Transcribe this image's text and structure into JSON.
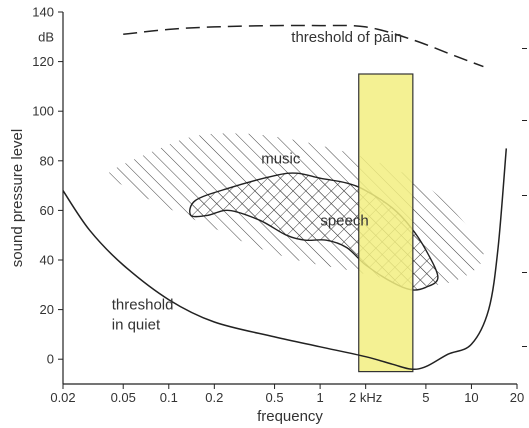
{
  "chart_data": {
    "type": "area",
    "title": "",
    "xlabel": "frequency",
    "ylabel": "sound pressure level",
    "x_scale": "log",
    "xlim": [
      0.02,
      20
    ],
    "ylim": [
      -10,
      140
    ],
    "x_ticks": [
      {
        "value": 0.02,
        "label": "0.02"
      },
      {
        "value": 0.05,
        "label": "0.05"
      },
      {
        "value": 0.1,
        "label": "0.1"
      },
      {
        "value": 0.2,
        "label": "0.2"
      },
      {
        "value": 0.5,
        "label": "0.5"
      },
      {
        "value": 1,
        "label": "1"
      },
      {
        "value": 2,
        "label": "2 kHz"
      },
      {
        "value": 5,
        "label": "5"
      },
      {
        "value": 10,
        "label": "10"
      },
      {
        "value": 20,
        "label": "20"
      }
    ],
    "y_ticks": [
      {
        "value": 0,
        "label": "0"
      },
      {
        "value": 20,
        "label": "20"
      },
      {
        "value": 40,
        "label": "40"
      },
      {
        "value": 60,
        "label": "60"
      },
      {
        "value": 80,
        "label": "80"
      },
      {
        "value": 100,
        "label": "100"
      },
      {
        "value": 120,
        "label": "120"
      },
      {
        "value": 140,
        "label": "140"
      }
    ],
    "y_unit": "dB",
    "grid": false,
    "series": [
      {
        "name": "threshold of pain",
        "style": "dashed",
        "x": [
          0.05,
          0.1,
          0.2,
          0.5,
          1,
          2,
          4,
          8,
          12
        ],
        "y": [
          131,
          133,
          134,
          134.5,
          134.5,
          134,
          129,
          122,
          118
        ]
      },
      {
        "name": "threshold in quiet",
        "style": "solid",
        "x": [
          0.02,
          0.03,
          0.05,
          0.1,
          0.2,
          0.5,
          1,
          2,
          3,
          4,
          5,
          7,
          10,
          13,
          15,
          17
        ],
        "y": [
          68,
          52,
          38,
          24,
          15,
          9,
          5,
          1,
          -2,
          -4,
          -3,
          2,
          6,
          20,
          45,
          85
        ]
      }
    ],
    "regions": [
      {
        "name": "music",
        "hatch": "single",
        "x": [
          0.04,
          0.08,
          0.15,
          0.3,
          0.6,
          1.2,
          2.5,
          5,
          9,
          12,
          10,
          6,
          3,
          1.5,
          0.7,
          0.35,
          0.18,
          0.09,
          0.05
        ],
        "y": [
          75,
          84,
          90,
          91,
          89,
          85,
          79,
          70,
          55,
          43,
          35,
          30,
          32,
          36,
          40,
          46,
          54,
          62,
          70
        ]
      },
      {
        "name": "speech",
        "hatch": "cross",
        "x": [
          0.15,
          0.25,
          0.5,
          0.7,
          1,
          1.5,
          2,
          3,
          4,
          5,
          6,
          5,
          4,
          3,
          2,
          1.5,
          1.1,
          0.8,
          0.6,
          0.4,
          0.25,
          0.18,
          0.14
        ],
        "y": [
          64,
          69,
          74,
          75,
          73,
          71,
          68,
          61,
          53,
          44,
          33,
          29,
          28,
          31,
          38,
          45,
          48,
          48,
          50,
          56,
          60,
          58,
          58
        ]
      }
    ],
    "band": {
      "x": [
        1.8,
        4.1
      ],
      "y": [
        -5,
        115
      ],
      "color": "#f2ee80"
    },
    "annotations": [
      {
        "text": "threshold of pain",
        "x": 1.5,
        "y": 128
      },
      {
        "text": "music",
        "x": 0.55,
        "y": 79
      },
      {
        "text": "speech",
        "x": 1.45,
        "y": 54
      },
      {
        "text": "threshold",
        "x": 0.042,
        "y": 20
      },
      {
        "text": "in quiet",
        "x": 0.042,
        "y": 12
      }
    ]
  }
}
